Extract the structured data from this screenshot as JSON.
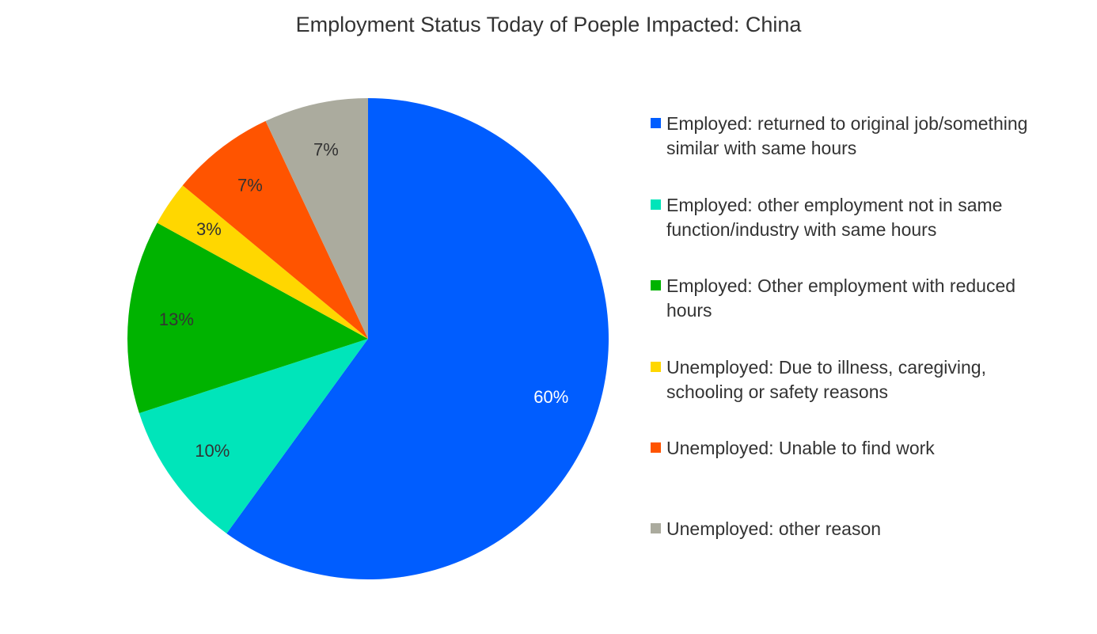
{
  "chart_data": {
    "type": "pie",
    "title": "Employment Status Today of Poeple Impacted: China",
    "slices": [
      {
        "label": "Employed: returned to original job/something similar with same hours",
        "value": 60,
        "value_label": "60%",
        "color": "#005DFF",
        "label_color": "#ffffff"
      },
      {
        "label": "Employed: other employment not in same function/industry with same hours",
        "value": 10,
        "value_label": "10%",
        "color": "#00E5BA",
        "label_color": "#333333"
      },
      {
        "label": "Employed: Other employment with reduced hours",
        "value": 13,
        "value_label": "13%",
        "color": "#00B300",
        "label_color": "#333333"
      },
      {
        "label": "Unemployed: Due to illness, caregiving, schooling or safety reasons",
        "value": 3,
        "value_label": "3%",
        "color": "#FFD700",
        "label_color": "#333333"
      },
      {
        "label": "Unemployed: Unable to find work",
        "value": 7,
        "value_label": "7%",
        "color": "#FF5400",
        "label_color": "#333333"
      },
      {
        "label": "Unemployed: other reason",
        "value": 7,
        "value_label": "7%",
        "color": "#ABAB9E",
        "label_color": "#333333"
      }
    ],
    "legend_position": "right"
  }
}
